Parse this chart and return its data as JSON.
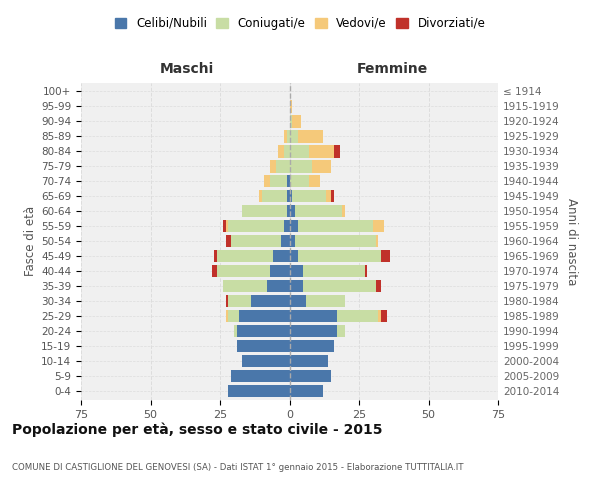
{
  "age_groups": [
    "0-4",
    "5-9",
    "10-14",
    "15-19",
    "20-24",
    "25-29",
    "30-34",
    "35-39",
    "40-44",
    "45-49",
    "50-54",
    "55-59",
    "60-64",
    "65-69",
    "70-74",
    "75-79",
    "80-84",
    "85-89",
    "90-94",
    "95-99",
    "100+"
  ],
  "birth_years": [
    "2010-2014",
    "2005-2009",
    "2000-2004",
    "1995-1999",
    "1990-1994",
    "1985-1989",
    "1980-1984",
    "1975-1979",
    "1970-1974",
    "1965-1969",
    "1960-1964",
    "1955-1959",
    "1950-1954",
    "1945-1949",
    "1940-1944",
    "1935-1939",
    "1930-1934",
    "1925-1929",
    "1920-1924",
    "1915-1919",
    "≤ 1914"
  ],
  "maschi": {
    "celibi": [
      22,
      21,
      17,
      19,
      19,
      18,
      14,
      8,
      7,
      6,
      3,
      2,
      1,
      1,
      1,
      0,
      0,
      0,
      0,
      0,
      0
    ],
    "coniugati": [
      0,
      0,
      0,
      0,
      1,
      4,
      8,
      16,
      19,
      20,
      18,
      20,
      16,
      9,
      6,
      5,
      2,
      1,
      0,
      0,
      0
    ],
    "vedovi": [
      0,
      0,
      0,
      0,
      0,
      1,
      0,
      0,
      0,
      0,
      0,
      1,
      0,
      1,
      2,
      2,
      2,
      1,
      0,
      0,
      0
    ],
    "divorziati": [
      0,
      0,
      0,
      0,
      0,
      0,
      1,
      0,
      2,
      1,
      2,
      1,
      0,
      0,
      0,
      0,
      0,
      0,
      0,
      0,
      0
    ]
  },
  "femmine": {
    "nubili": [
      12,
      15,
      14,
      16,
      17,
      17,
      6,
      5,
      5,
      3,
      2,
      3,
      2,
      1,
      0,
      0,
      0,
      0,
      0,
      0,
      0
    ],
    "coniugate": [
      0,
      0,
      0,
      0,
      3,
      15,
      14,
      26,
      22,
      30,
      29,
      27,
      17,
      12,
      7,
      8,
      7,
      3,
      1,
      0,
      0
    ],
    "vedove": [
      0,
      0,
      0,
      0,
      0,
      1,
      0,
      0,
      0,
      0,
      1,
      4,
      1,
      2,
      4,
      7,
      9,
      9,
      3,
      1,
      0
    ],
    "divorziate": [
      0,
      0,
      0,
      0,
      0,
      2,
      0,
      2,
      1,
      3,
      0,
      0,
      0,
      1,
      0,
      0,
      2,
      0,
      0,
      0,
      0
    ]
  },
  "colors": {
    "celibi": "#4a77aa",
    "coniugati": "#c8dda4",
    "vedovi": "#f5c97a",
    "divorziati": "#c0312a"
  },
  "xlim": 75,
  "title": "Popolazione per età, sesso e stato civile - 2015",
  "subtitle": "COMUNE DI CASTIGLIONE DEL GENOVESI (SA) - Dati ISTAT 1° gennaio 2015 - Elaborazione TUTTITALIA.IT",
  "ylabel_left": "Fasce di età",
  "ylabel_right": "Anni di nascita",
  "xlabel_maschi": "Maschi",
  "xlabel_femmine": "Femmine",
  "legend_labels": [
    "Celibi/Nubili",
    "Coniugati/e",
    "Vedovi/e",
    "Divorziati/e"
  ],
  "bg_color": "#ffffff",
  "plot_bg": "#f0f0f0",
  "grid_color": "#dddddd",
  "bar_height": 0.82
}
